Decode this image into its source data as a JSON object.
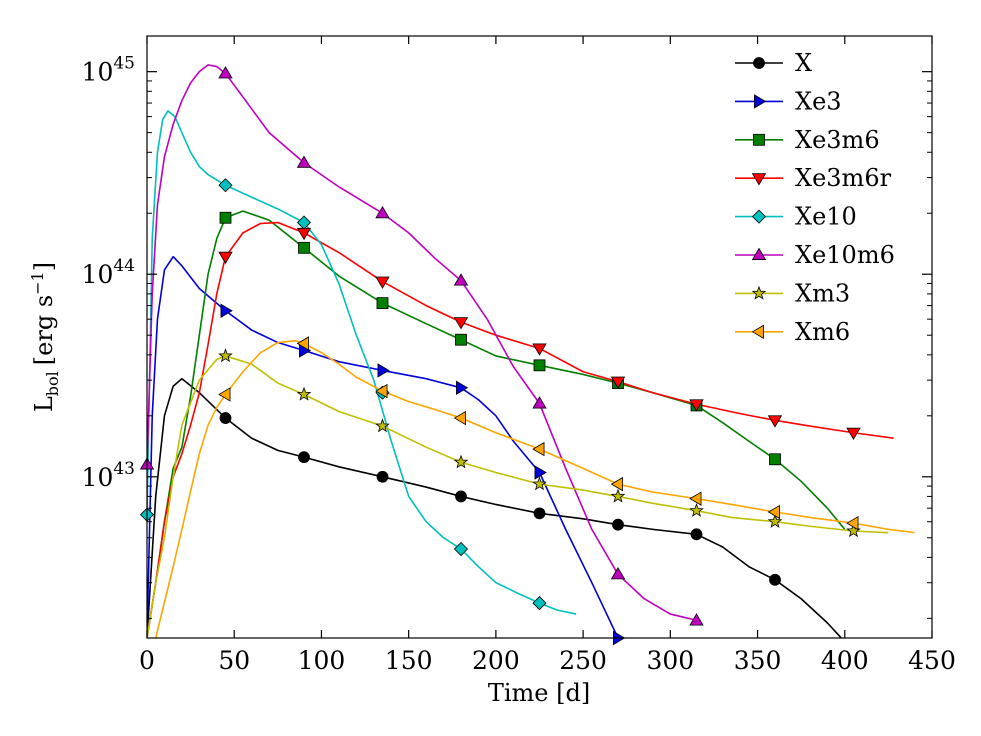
{
  "chart_data": {
    "type": "line",
    "title": "",
    "xlabel": "Time [d]",
    "ylabel_main": "L",
    "ylabel_sub": "bol",
    "ylabel_unit_pre": "[erg s",
    "ylabel_unit_sup": "−1",
    "ylabel_unit_post": "]",
    "xlim": [
      0,
      450
    ],
    "ylim": [
      1.6e+42,
      1.5e+45
    ],
    "yscale": "log",
    "legend_position": "top-right",
    "x_ticks": [
      0,
      50,
      100,
      150,
      200,
      250,
      300,
      350,
      400,
      450
    ],
    "x_tick_labels": [
      "0",
      "50",
      "100",
      "150",
      "200",
      "250",
      "300",
      "350",
      "400",
      "450"
    ],
    "y_major_ticks": [
      {
        "value": 1e+43,
        "base": "10",
        "exp": "43"
      },
      {
        "value": 1e+44,
        "base": "10",
        "exp": "44"
      },
      {
        "value": 1e+45,
        "base": "10",
        "exp": "45"
      }
    ],
    "series": [
      {
        "name": "X",
        "color": "#000000",
        "marker": "circle",
        "x": [
          0,
          5,
          10,
          15,
          20,
          30,
          45,
          60,
          75,
          90,
          110,
          135,
          160,
          180,
          200,
          225,
          250,
          270,
          290,
          315,
          330,
          345,
          360,
          375,
          390,
          398
        ],
        "y": [
          1.6e+42,
          8e+42,
          2e+43,
          2.8e+43,
          3.05e+43,
          2.6e+43,
          1.95e+43,
          1.55e+43,
          1.35e+43,
          1.25e+43,
          1.12e+43,
          1e+43,
          8.9e+42,
          8e+42,
          7.3e+42,
          6.6e+42,
          6.2e+42,
          5.8e+42,
          5.5e+42,
          5.2e+42,
          4.5e+42,
          3.6e+42,
          3.1e+42,
          2.5e+42,
          1.9e+42,
          1.6e+42
        ],
        "marker_x": [
          45,
          90,
          135,
          180,
          225,
          270,
          315,
          360
        ],
        "marker_y": [
          1.95e+43,
          1.25e+43,
          1e+43,
          8e+42,
          6.6e+42,
          5.8e+42,
          5.2e+42,
          3.1e+42
        ]
      },
      {
        "name": "Xe3",
        "color": "#0000dd",
        "marker": "triangle-right",
        "x": [
          0,
          3,
          6,
          10,
          15,
          20,
          30,
          45,
          60,
          75,
          90,
          110,
          135,
          160,
          180,
          190,
          200,
          210,
          225,
          240,
          255,
          270
        ],
        "y": [
          1.6e+42,
          2e+43,
          6e+43,
          1.05e+44,
          1.22e+44,
          1.1e+44,
          8.5e+43,
          6.6e+43,
          5.3e+43,
          4.6e+43,
          4.2e+43,
          3.7e+43,
          3.35e+43,
          3.05e+43,
          2.75e+43,
          2.4e+43,
          2e+43,
          1.5e+43,
          1.05e+43,
          5.5e+42,
          3e+42,
          1.6e+42
        ],
        "marker_x": [
          45,
          90,
          135,
          180,
          225,
          270
        ],
        "marker_y": [
          6.6e+43,
          4.2e+43,
          3.35e+43,
          2.75e+43,
          1.05e+43,
          1.6e+42
        ]
      },
      {
        "name": "Xe3m6",
        "color": "#007f00",
        "marker": "square",
        "x": [
          0,
          5,
          10,
          15,
          20,
          25,
          30,
          35,
          40,
          45,
          55,
          70,
          90,
          110,
          135,
          160,
          180,
          200,
          225,
          250,
          270,
          290,
          315,
          330,
          345,
          360,
          375,
          390,
          400
        ],
        "y": [
          1.6e+42,
          3e+42,
          6e+42,
          1.1e+43,
          1.4e+43,
          2.5e+43,
          5e+43,
          1e+44,
          1.5e+44,
          1.9e+44,
          2.05e+44,
          1.85e+44,
          1.35e+44,
          9.8e+43,
          7.2e+43,
          5.7e+43,
          4.75e+43,
          3.95e+43,
          3.55e+43,
          3.2e+43,
          2.9e+43,
          2.6e+43,
          2.25e+43,
          1.85e+43,
          1.5e+43,
          1.22e+43,
          9.5e+42,
          7e+42,
          5.5e+42
        ],
        "marker_x": [
          45,
          90,
          135,
          180,
          225,
          270,
          315,
          360
        ],
        "marker_y": [
          1.9e+44,
          1.35e+44,
          7.2e+43,
          4.75e+43,
          3.55e+43,
          2.9e+43,
          2.25e+43,
          1.22e+43
        ]
      },
      {
        "name": "Xe3m6r",
        "color": "#ff0000",
        "marker": "triangle-down",
        "x": [
          0,
          5,
          10,
          15,
          20,
          25,
          30,
          35,
          40,
          45,
          55,
          65,
          75,
          90,
          110,
          135,
          160,
          180,
          200,
          225,
          250,
          270,
          290,
          315,
          340,
          360,
          380,
          405,
          428
        ],
        "y": [
          1.6e+42,
          3e+42,
          6e+42,
          1e+43,
          1.3e+43,
          1.8e+43,
          2.6e+43,
          4.5e+43,
          8e+43,
          1.22e+44,
          1.6e+44,
          1.78e+44,
          1.8e+44,
          1.6e+44,
          1.28e+44,
          9.2e+43,
          7e+43,
          5.8e+43,
          5e+43,
          4.3e+43,
          3.3e+43,
          2.95e+43,
          2.6e+43,
          2.28e+43,
          2.05e+43,
          1.9e+43,
          1.78e+43,
          1.65e+43,
          1.55e+43
        ],
        "marker_x": [
          45,
          90,
          135,
          180,
          225,
          270,
          315,
          360,
          405
        ],
        "marker_y": [
          1.22e+44,
          1.6e+44,
          9.2e+43,
          5.8e+43,
          4.3e+43,
          2.95e+43,
          2.28e+43,
          1.9e+43,
          1.65e+43
        ]
      },
      {
        "name": "Xe10",
        "color": "#00bfbf",
        "marker": "diamond",
        "x": [
          0,
          3,
          6,
          9,
          12,
          16,
          20,
          25,
          30,
          35,
          45,
          60,
          75,
          90,
          100,
          110,
          120,
          130,
          140,
          150,
          160,
          170,
          180,
          190,
          200,
          215,
          225,
          235,
          246
        ],
        "y": [
          6.5e+42,
          1.5e+44,
          4e+44,
          5.8e+44,
          6.4e+44,
          6e+44,
          5e+44,
          4e+44,
          3.4e+44,
          3.1e+44,
          2.75e+44,
          2.4e+44,
          2.1e+44,
          1.8e+44,
          1.4e+44,
          9e+43,
          5e+43,
          3e+43,
          1.5e+43,
          8e+42,
          6e+42,
          5e+42,
          4.4e+42,
          3.6e+42,
          3e+42,
          2.6e+42,
          2.38e+42,
          2.2e+42,
          2.1e+42
        ],
        "marker_x": [
          0,
          45,
          90,
          135,
          180,
          225
        ],
        "marker_y": [
          6.5e+42,
          2.75e+44,
          1.8e+44,
          2.6e+43,
          4.4e+42,
          2.38e+42
        ]
      },
      {
        "name": "Xe10m6",
        "color": "#bf00bf",
        "marker": "triangle-up",
        "x": [
          0,
          3,
          6,
          10,
          15,
          20,
          25,
          30,
          35,
          40,
          45,
          55,
          70,
          90,
          110,
          135,
          150,
          165,
          180,
          195,
          210,
          225,
          240,
          255,
          270,
          285,
          300,
          316
        ],
        "y": [
          1.15e+43,
          8e+43,
          2.2e+44,
          3.8e+44,
          5.5e+44,
          7.2e+44,
          8.8e+44,
          1e+45,
          1.08e+45,
          1.06e+45,
          9.8e+44,
          7.5e+44,
          5e+44,
          3.55e+44,
          2.7e+44,
          2e+44,
          1.6e+44,
          1.2e+44,
          9.3e+43,
          6e+43,
          3.5e+43,
          2.3e+43,
          1.1e+43,
          5.5e+42,
          3.3e+42,
          2.5e+42,
          2.1e+42,
          1.95e+42
        ],
        "marker_x": [
          0,
          45,
          90,
          135,
          180,
          225,
          270,
          315
        ],
        "marker_y": [
          1.15e+43,
          9.8e+44,
          3.55e+44,
          2e+44,
          9.3e+43,
          2.3e+43,
          3.3e+42,
          1.95e+42
        ]
      },
      {
        "name": "Xm3",
        "color": "#bfbf00",
        "marker": "star",
        "x": [
          0,
          5,
          10,
          15,
          20,
          30,
          40,
          45,
          60,
          75,
          90,
          110,
          135,
          160,
          180,
          200,
          225,
          250,
          270,
          290,
          315,
          335,
          360,
          380,
          405,
          425
        ],
        "y": [
          1.6e+42,
          3e+42,
          5e+42,
          1e+43,
          1.8e+43,
          3e+43,
          3.8e+43,
          3.95e+43,
          3.6e+43,
          2.9e+43,
          2.55e+43,
          2.1e+43,
          1.78e+43,
          1.4e+43,
          1.18e+43,
          1.05e+43,
          9.2e+42,
          8.6e+42,
          8e+42,
          7.4e+42,
          6.8e+42,
          6.3e+42,
          6e+42,
          5.7e+42,
          5.4e+42,
          5.3e+42
        ],
        "marker_x": [
          45,
          90,
          135,
          180,
          225,
          270,
          315,
          360,
          405
        ],
        "marker_y": [
          3.95e+43,
          2.55e+43,
          1.78e+43,
          1.18e+43,
          9.2e+42,
          8e+42,
          6.8e+42,
          6e+42,
          5.4e+42
        ]
      },
      {
        "name": "Xm6",
        "color": "#ffa500",
        "marker": "triangle-left",
        "x": [
          5,
          10,
          15,
          20,
          25,
          30,
          35,
          40,
          45,
          55,
          65,
          75,
          85,
          90,
          100,
          110,
          120,
          135,
          150,
          165,
          180,
          200,
          225,
          250,
          270,
          290,
          315,
          335,
          360,
          380,
          405,
          425,
          440
        ],
        "y": [
          1.6e+42,
          2.4e+42,
          3.6e+42,
          5.5e+42,
          8.5e+42,
          1.3e+43,
          1.8e+43,
          2.2e+43,
          2.55e+43,
          3.3e+43,
          4.1e+43,
          4.6e+43,
          4.7e+43,
          4.55e+43,
          4.1e+43,
          3.6e+43,
          3.1e+43,
          2.65e+43,
          2.35e+43,
          2.15e+43,
          1.95e+43,
          1.65e+43,
          1.37e+43,
          1.1e+43,
          9.2e+42,
          8.4e+42,
          7.8e+42,
          7.3e+42,
          6.7e+42,
          6.3e+42,
          5.9e+42,
          5.5e+42,
          5.3e+42
        ],
        "marker_x": [
          45,
          90,
          135,
          180,
          225,
          270,
          315,
          360,
          405
        ],
        "marker_y": [
          2.55e+43,
          4.55e+43,
          2.65e+43,
          1.95e+43,
          1.37e+43,
          9.2e+42,
          7.8e+42,
          6.7e+42,
          5.9e+42
        ]
      }
    ]
  }
}
